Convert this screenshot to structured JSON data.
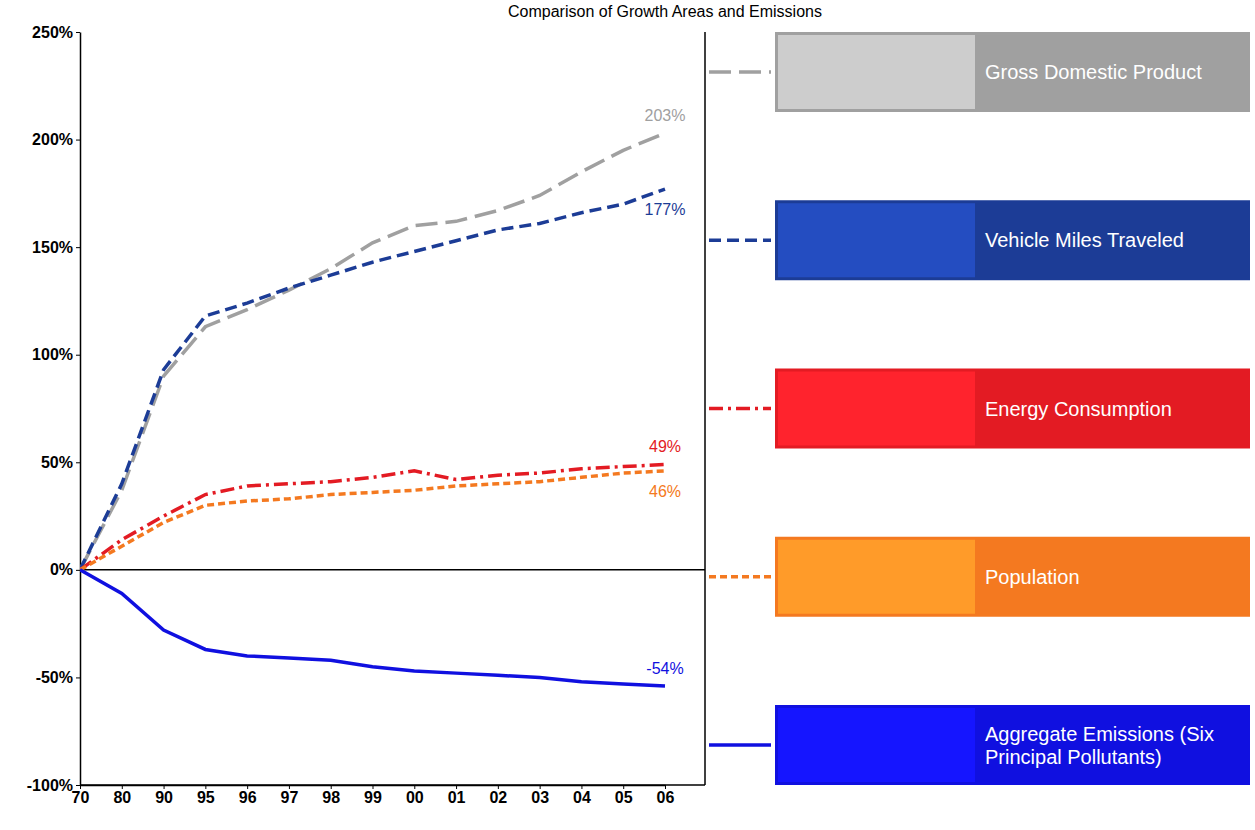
{
  "chart_data": {
    "type": "line",
    "title": "Comparison of Growth Areas and Emissions",
    "categories": [
      "70",
      "80",
      "90",
      "95",
      "96",
      "97",
      "98",
      "99",
      "00",
      "01",
      "02",
      "03",
      "04",
      "05",
      "06"
    ],
    "series": [
      {
        "name": "Gross Domestic Product",
        "color": "#a0a0a0",
        "line_style": "long_dash",
        "values": [
          0,
          37,
          90,
          113,
          121,
          130,
          140,
          152,
          160,
          162,
          167,
          174,
          185,
          195,
          203
        ],
        "value_labels": [
          null,
          null,
          null,
          null,
          null,
          null,
          null,
          null,
          null,
          null,
          null,
          null,
          null,
          null,
          "203%"
        ]
      },
      {
        "name": "Vehicle Miles Traveled",
        "color": "#1c3c96",
        "line_style": "dashed",
        "values": [
          0,
          40,
          93,
          118,
          124,
          131,
          137,
          143,
          148,
          153,
          158,
          161,
          166,
          170,
          177
        ],
        "value_labels": [
          null,
          null,
          null,
          null,
          null,
          null,
          null,
          null,
          null,
          null,
          null,
          null,
          null,
          null,
          "177%"
        ]
      },
      {
        "name": "Energy Consumption",
        "color": "#e31b23",
        "line_style": "dash_dot",
        "values": [
          0,
          14,
          25,
          35,
          39,
          40,
          41,
          43,
          46,
          42,
          44,
          45,
          47,
          48,
          49
        ],
        "value_labels": [
          null,
          null,
          null,
          null,
          null,
          null,
          null,
          null,
          null,
          null,
          null,
          null,
          null,
          null,
          "49%"
        ]
      },
      {
        "name": "Population",
        "color": "#f47920",
        "line_style": "short_dash",
        "values": [
          0,
          11,
          22,
          30,
          32,
          33,
          35,
          36,
          37,
          39,
          40,
          41,
          43,
          45,
          46
        ],
        "value_labels": [
          null,
          null,
          null,
          null,
          null,
          null,
          null,
          null,
          null,
          null,
          null,
          null,
          null,
          null,
          "46%"
        ]
      },
      {
        "name": "Aggregate Emissions (Six Principal Pollutants)",
        "color": "#1010e0",
        "line_style": "solid",
        "values": [
          0,
          -11,
          -28,
          -37,
          -40,
          -41,
          -42,
          -45,
          -47,
          -48,
          -49,
          -50,
          -52,
          -53,
          -54
        ],
        "value_labels": [
          null,
          null,
          null,
          null,
          null,
          null,
          null,
          null,
          null,
          null,
          null,
          null,
          null,
          null,
          "-54%"
        ]
      }
    ],
    "ylim": [
      -100,
      250
    ],
    "yticks": [
      {
        "value": -100,
        "label": "-100%"
      },
      {
        "value": -50,
        "label": "-50%"
      },
      {
        "value": 0,
        "label": "0%"
      },
      {
        "value": 50,
        "label": "50%"
      },
      {
        "value": 100,
        "label": "100%"
      },
      {
        "value": 150,
        "label": "150%"
      },
      {
        "value": 200,
        "label": "200%"
      },
      {
        "value": 250,
        "label": "250%"
      }
    ],
    "grid": false,
    "legend": "right"
  }
}
